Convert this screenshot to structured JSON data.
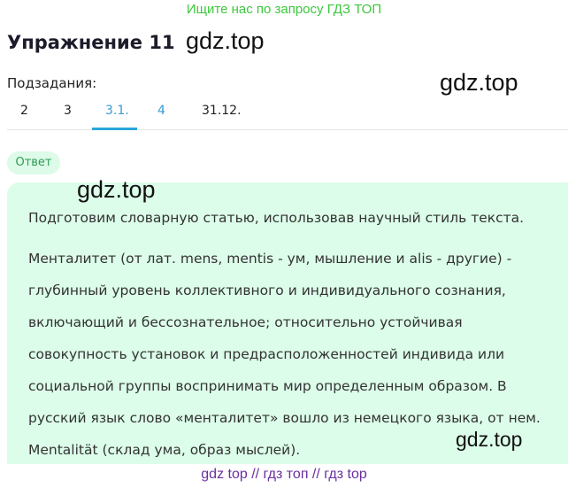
{
  "banner": "Ищите нас по запросу ГДЗ ТОП",
  "title": "Упражнение 11",
  "watermark": "gdz.top",
  "subtasks_label": "Подзадания:",
  "tabs": [
    {
      "label": "2"
    },
    {
      "label": "3"
    },
    {
      "label": "3.1.",
      "active": true
    },
    {
      "label": "4"
    },
    {
      "label": "31.12."
    }
  ],
  "answer_label": "Ответ",
  "answer": {
    "p1": "Подготовим словарную статью, использовав научный стиль текста.",
    "lines": [
      "Менталитет (от лат. mens, mentis - ум, мышление и alis - другие) -",
      "глубинный уровень коллективного и индивидуального сознания,",
      "включающий и бессознательное; относительно устойчивая",
      "совокупность установок и предрасположенностей индивида или",
      "социальной группы воспринимать мир определенным образом. В",
      "русский язык слово «менталитет» вошло из немецкого языка, от нем.",
      "Mentalität (склад ума, образ мыслей)."
    ]
  },
  "footer": "gdz top  //  гдз топ  //  гдз top",
  "colors": {
    "accent": "#2aa6dc",
    "banner": "#3cc83c",
    "answer_bg": "#dcfde9",
    "footer": "#6a2fa0"
  }
}
